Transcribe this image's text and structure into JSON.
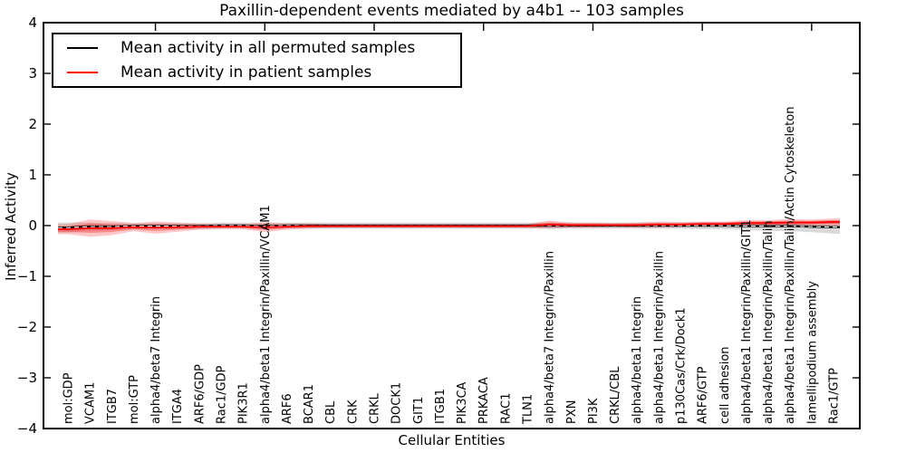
{
  "chart_data": {
    "type": "line",
    "title": "Paxillin-dependent events mediated by a4b1 -- 103 samples",
    "xlabel": "Cellular Entities",
    "ylabel": "Inferred Activity",
    "ylim": [
      -4,
      4
    ],
    "yticks": [
      4,
      3,
      2,
      1,
      0,
      -1,
      -2,
      -3,
      -4
    ],
    "ytick_labels": [
      "4",
      "3",
      "2",
      "1",
      "0",
      "−1",
      "−2",
      "−3",
      "−4"
    ],
    "grid": false,
    "legend_position": "upper left",
    "legend": [
      {
        "label": "Mean activity in all permuted samples",
        "color": "#000000"
      },
      {
        "label": "Mean activity in patient samples",
        "color": "#ff0000"
      }
    ],
    "colors": {
      "permuted": "#000000",
      "patient": "#ff0000",
      "zero_dash": "#ffffff",
      "permuted_band": "#bbbbbb",
      "patient_band": "#ff0000"
    },
    "categories": [
      "mol:GDP",
      "VCAM1",
      "ITGB7",
      "mol:GTP",
      "alpha4/beta7 Integrin",
      "ITGA4",
      "ARF6/GDP",
      "Rac1/GDP",
      "PIK3R1",
      "alpha4/beta1 Integrin/Paxillin/VCAM1",
      "ARF6",
      "BCAR1",
      "CBL",
      "CRK",
      "CRKL",
      "DOCK1",
      "GIT1",
      "ITGB1",
      "PIK3CA",
      "PRKACA",
      "RAC1",
      "TLN1",
      "alpha4/beta7 Integrin/Paxillin",
      "PXN",
      "PI3K",
      "CRKL/CBL",
      "alpha4/beta1 Integrin",
      "alpha4/beta1 Integrin/Paxillin",
      "p130Cas/Crk/Dock1",
      "ARF6/GTP",
      "cell adhesion",
      "alpha4/beta1 Integrin/Paxillin/GIT1",
      "alpha4/beta1 Integrin/Paxillin/Talin",
      "alpha4/beta1 Integrin/Paxillin/Talin/Actin Cytoskeleton",
      "lamellipodium assembly",
      "Rac1/GTP"
    ],
    "series": [
      {
        "name": "Mean activity in all permuted samples",
        "values": [
          -0.04,
          -0.02,
          -0.02,
          -0.01,
          -0.01,
          -0.01,
          -0.01,
          0,
          0,
          -0.01,
          0,
          0,
          0,
          0,
          0,
          0,
          0,
          0,
          0,
          0,
          0,
          0,
          0,
          0,
          0,
          0,
          0,
          0,
          0,
          0,
          0,
          -0.01,
          -0.01,
          -0.01,
          -0.02,
          -0.03
        ],
        "band_half_widths": [
          0.1,
          0.08,
          0.07,
          0.06,
          0.06,
          0.06,
          0.06,
          0.06,
          0.06,
          0.06,
          0.06,
          0.06,
          0.06,
          0.06,
          0.06,
          0.06,
          0.06,
          0.06,
          0.06,
          0.06,
          0.06,
          0.06,
          0.06,
          0.06,
          0.06,
          0.06,
          0.06,
          0.06,
          0.06,
          0.07,
          0.07,
          0.08,
          0.09,
          0.1,
          0.11,
          0.13
        ]
      },
      {
        "name": "Mean activity in patient samples",
        "values": [
          -0.07,
          -0.05,
          -0.05,
          -0.03,
          -0.04,
          -0.03,
          -0.02,
          -0.02,
          -0.02,
          -0.03,
          -0.02,
          -0.01,
          -0.01,
          -0.01,
          -0.01,
          -0.01,
          -0.01,
          -0.01,
          -0.01,
          -0.01,
          -0.01,
          -0.01,
          0.02,
          0.01,
          0.01,
          0.01,
          0.01,
          0.02,
          0.02,
          0.03,
          0.03,
          0.05,
          0.05,
          0.06,
          0.06,
          0.07
        ],
        "band_half_widths": [
          0.1,
          0.17,
          0.14,
          0.08,
          0.12,
          0.09,
          0.06,
          0.05,
          0.05,
          0.1,
          0.06,
          0.05,
          0.04,
          0.04,
          0.04,
          0.04,
          0.04,
          0.04,
          0.04,
          0.04,
          0.04,
          0.04,
          0.08,
          0.05,
          0.05,
          0.04,
          0.05,
          0.06,
          0.05,
          0.05,
          0.05,
          0.06,
          0.06,
          0.07,
          0.06,
          0.07
        ]
      }
    ],
    "x_major_tick_indices": [
      4,
      9,
      14,
      19,
      24,
      29,
      34
    ]
  }
}
